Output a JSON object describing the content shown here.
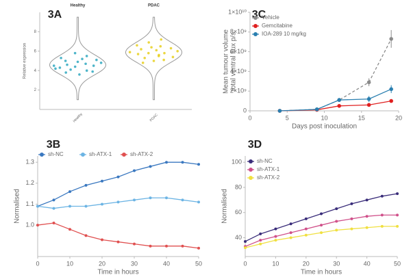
{
  "chart_data": [
    {
      "type": "violin",
      "title": "3A",
      "y_label": "Relative expression",
      "ylim": [
        0,
        10
      ],
      "yticks": [
        2,
        4,
        6,
        8
      ],
      "groups": [
        {
          "name": "Healthy",
          "color": "#2fa8c0",
          "values": [
            4.2,
            4.8,
            5.1,
            3.9,
            4.5,
            5.5,
            4.0,
            4.7,
            5.2,
            3.6,
            4.9,
            4.4,
            5.8,
            4.1,
            4.6,
            5.0,
            3.8,
            4.3,
            5.3,
            4.5
          ]
        },
        {
          "name": "PDAC",
          "color": "#e8d020",
          "values": [
            5.6,
            6.1,
            5.0,
            6.4,
            5.8,
            6.9,
            5.3,
            6.2,
            5.7,
            4.8,
            6.6,
            5.9,
            6.0,
            5.4,
            6.3,
            7.2,
            5.1,
            5.8,
            6.5,
            5.5
          ]
        }
      ]
    },
    {
      "type": "line",
      "title": "3C",
      "x_label": "Days post inoculation",
      "y_label": [
        "Mean tumour volume",
        "total ventral flux p/s"
      ],
      "legend": "top-left",
      "x": [
        4,
        9,
        12,
        16,
        19
      ],
      "xlim": [
        0,
        20
      ],
      "xticks": [
        0,
        5,
        10,
        15,
        20
      ],
      "ylim": [
        0,
        10000000000
      ],
      "yticks": [
        0,
        {
          "value": 2000000000,
          "label": "2×10⁹"
        },
        {
          "value": 4000000000,
          "label": "4×10⁹"
        },
        {
          "value": 6000000000,
          "label": "6×10⁹"
        },
        {
          "value": 8000000000,
          "label": "8×10⁹"
        },
        {
          "value": 10000000000,
          "label": "1×10¹⁰"
        }
      ],
      "series": [
        {
          "name": "Vehicle",
          "color": "#8a8a8a",
          "line_style": "dashed",
          "values": [
            0,
            150000000,
            1100000000,
            2900000000,
            7300000000
          ],
          "errors": [
            0,
            50000000,
            200000000,
            400000000,
            900000000
          ]
        },
        {
          "name": "Gemcitabine",
          "color": "#e02020",
          "line_style": "solid",
          "values": [
            0,
            100000000,
            500000000,
            600000000,
            1000000000
          ],
          "errors": [
            0,
            30000000,
            100000000,
            100000000,
            150000000
          ]
        },
        {
          "name": "IOA-289 10 mg/kg",
          "color": "#2a7fb0",
          "line_style": "solid",
          "values": [
            0,
            150000000,
            1100000000,
            1200000000,
            2200000000
          ],
          "errors": [
            0,
            50000000,
            200000000,
            300000000,
            400000000
          ]
        }
      ]
    },
    {
      "type": "line",
      "title": "3B",
      "x_label": "Time in hours",
      "y_label": "Normalised",
      "legend": "top",
      "x": [
        0,
        5,
        10,
        15,
        20,
        25,
        30,
        35,
        40,
        45,
        50
      ],
      "xlim": [
        0,
        50
      ],
      "xticks": [
        0,
        10,
        20,
        30,
        40,
        50
      ],
      "ylim": [
        0.85,
        1.33
      ],
      "yticks": [
        {
          "value": 1,
          "label": "1.0"
        },
        1.1,
        1.2,
        1.3
      ],
      "series": [
        {
          "name": "sh-NC",
          "color": "#3a78c0",
          "line_style": "solid",
          "values": [
            1.09,
            1.12,
            1.16,
            1.19,
            1.21,
            1.23,
            1.26,
            1.28,
            1.3,
            1.3,
            1.29
          ]
        },
        {
          "name": "sh-ATX-1",
          "color": "#6cb4e4",
          "line_style": "solid",
          "values": [
            1.09,
            1.08,
            1.09,
            1.09,
            1.1,
            1.11,
            1.12,
            1.13,
            1.13,
            1.12,
            1.11
          ]
        },
        {
          "name": "sh-ATX-2",
          "color": "#e05050",
          "line_style": "solid",
          "values": [
            1.0,
            1.01,
            0.98,
            0.95,
            0.93,
            0.92,
            0.91,
            0.9,
            0.9,
            0.9,
            0.89
          ]
        }
      ]
    },
    {
      "type": "line",
      "title": "3D",
      "x_label": "Time in hours",
      "y_label": "Normalised",
      "legend": "top-left",
      "x": [
        0,
        5,
        10,
        15,
        20,
        25,
        30,
        35,
        40,
        45,
        50
      ],
      "xlim": [
        0,
        50
      ],
      "xticks": [
        0,
        10,
        20,
        30,
        40,
        50
      ],
      "ylim": [
        25,
        105
      ],
      "yticks": [
        40,
        60,
        80,
        100
      ],
      "series": [
        {
          "name": "sh-NC",
          "color": "#3a2d7a",
          "line_style": "solid",
          "values": [
            37,
            43,
            47,
            51,
            55,
            59,
            63,
            67,
            70,
            73,
            75
          ]
        },
        {
          "name": "sh-ATX-1",
          "color": "#d0508a",
          "line_style": "solid",
          "values": [
            33,
            38,
            41,
            44,
            47,
            50,
            53,
            55,
            57,
            58,
            58
          ]
        },
        {
          "name": "sh-ATX-2",
          "color": "#f0e040",
          "line_style": "solid",
          "values": [
            32,
            35,
            38,
            40,
            42,
            44,
            46,
            47,
            48,
            49,
            49
          ]
        }
      ]
    }
  ]
}
